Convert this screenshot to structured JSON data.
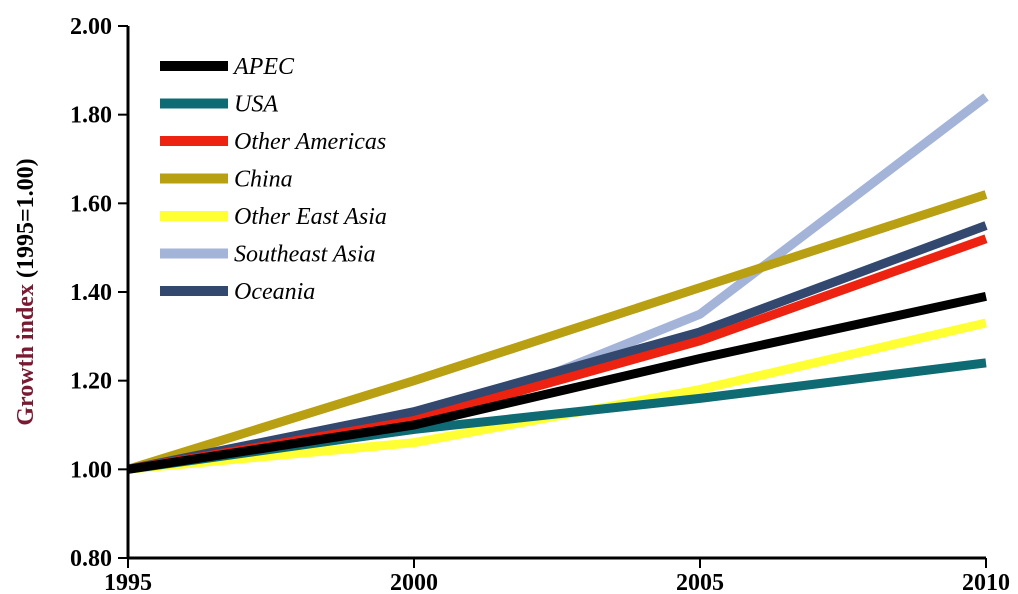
{
  "chart_data": {
    "type": "line",
    "title": "",
    "xlabel": "",
    "ylabel": {
      "main": "Growth index",
      "sub": " (1995=1.00)",
      "main_color": "#7a1a32",
      "sub_color": "#000000"
    },
    "x": [
      1995,
      2000,
      2005,
      2010
    ],
    "x_tick_labels": [
      "1995",
      "2000",
      "2005",
      "2010"
    ],
    "xlim": [
      1995,
      2010
    ],
    "ylim": [
      0.8,
      2.0
    ],
    "y_ticks": [
      0.8,
      1.0,
      1.2,
      1.4,
      1.6,
      1.8,
      2.0
    ],
    "y_tick_labels": [
      "0.80",
      "1.00",
      "1.20",
      "1.40",
      "1.60",
      "1.80",
      "2.00"
    ],
    "grid": false,
    "legend_position": "top-left",
    "series": [
      {
        "name": "APEC",
        "color": "#000000",
        "values": [
          1.0,
          1.1,
          1.25,
          1.39
        ]
      },
      {
        "name": "USA",
        "color": "#0e6b74",
        "values": [
          1.0,
          1.09,
          1.16,
          1.24
        ]
      },
      {
        "name": "Other Americas",
        "color": "#ee2211",
        "values": [
          1.0,
          1.11,
          1.29,
          1.52
        ]
      },
      {
        "name": "China",
        "color": "#b8a012",
        "values": [
          1.0,
          1.2,
          1.41,
          1.62
        ]
      },
      {
        "name": "Other East Asia",
        "color": "#ffff33",
        "values": [
          1.0,
          1.06,
          1.18,
          1.33
        ]
      },
      {
        "name": "Southeast Asia",
        "color": "#a4b3d8",
        "values": [
          1.0,
          1.09,
          1.35,
          1.84
        ]
      },
      {
        "name": "Oceania",
        "color": "#33486e",
        "values": [
          1.0,
          1.13,
          1.31,
          1.55
        ]
      }
    ],
    "draw_order": [
      5,
      3,
      6,
      2,
      4,
      1,
      0
    ]
  }
}
